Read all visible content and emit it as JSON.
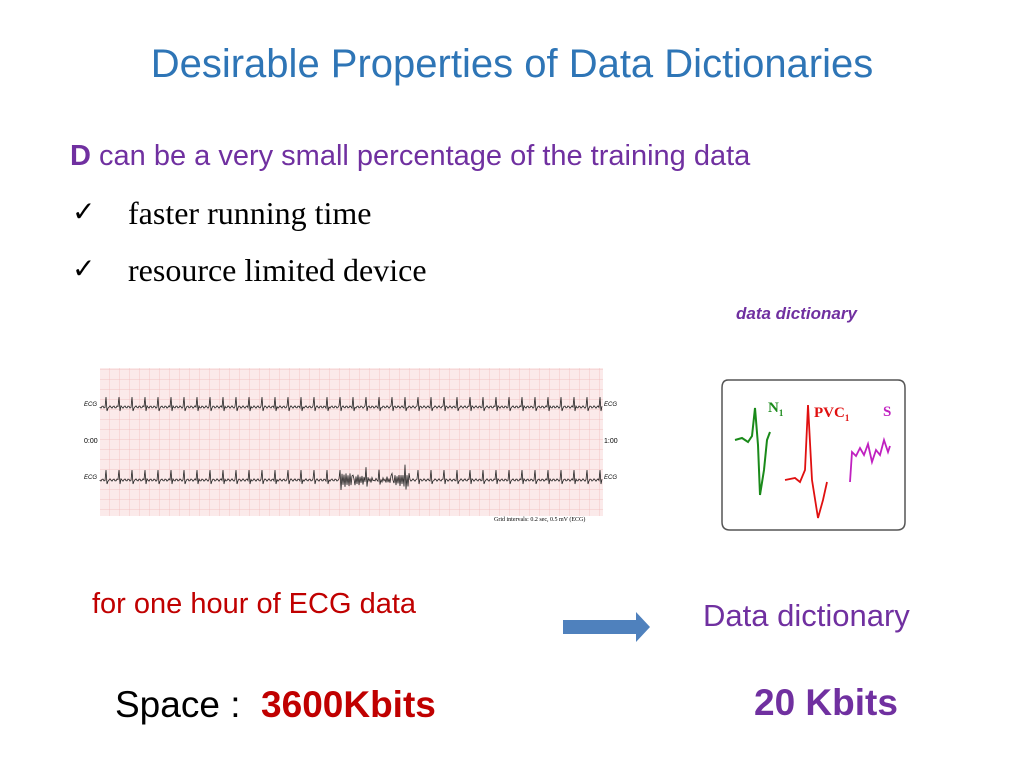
{
  "title": "Desirable Properties of Data Dictionaries",
  "subtitle": {
    "emphasis": "D",
    "text": "can be a very small percentage of the training data"
  },
  "bullets": [
    "faster running time",
    "resource limited device"
  ],
  "ecg_figure": {
    "channel_labels": [
      "ECG",
      "ECG",
      "ECG",
      "ECG"
    ],
    "start_time": "0:00",
    "end_time": "1:00",
    "caption": "Grid intervals: 0.2 sec, 0.5 mV (ECG)"
  },
  "dictionary_figure": {
    "heading": "data dictionary",
    "atoms": [
      {
        "label": "N",
        "subscript": "1"
      },
      {
        "label": "PVC",
        "subscript": "1"
      },
      {
        "label": "S"
      }
    ]
  },
  "left_caption": "for one hour of ECG data",
  "right_caption": "Data dictionary",
  "left_size": {
    "label": "Space :",
    "value": "3600Kbits"
  },
  "right_size": "20 Kbits"
}
